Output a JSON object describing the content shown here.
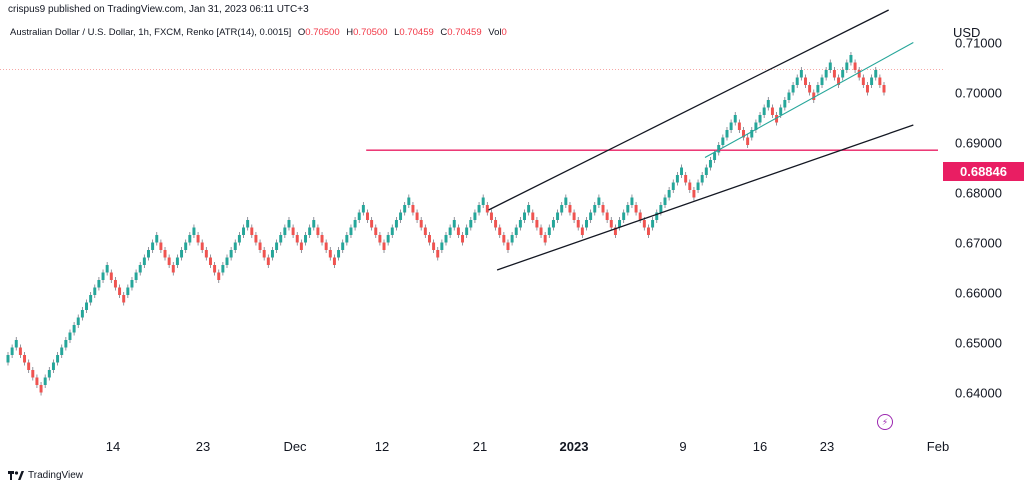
{
  "header": {
    "published": "crispus9 published on TradingView.com, Jan 31, 2023 06:11 UTC+3"
  },
  "legend": {
    "symbol": "Australian Dollar / U.S. Dollar, 1h, FXCM, Renko [ATR(14), 0.0015]",
    "open_label": "O",
    "open": "0.70500",
    "high_label": "H",
    "high": "0.70500",
    "low_label": "L",
    "low": "0.70459",
    "close_label": "C",
    "close": "0.70459",
    "vol_label": "Vol",
    "vol": "0"
  },
  "price_tag": "0.68846",
  "brand": "TradingView",
  "colors": {
    "up": "#26a69a",
    "down": "#ef5350",
    "resistance": "#e91e63",
    "channel": "#131722",
    "inner_trend": "#26a69a"
  },
  "chart_data": {
    "type": "renko",
    "currency": "USD",
    "brick_size": 0.0015,
    "ylim": [
      0.6325,
      0.7185
    ],
    "y_ticks": [
      "0.71000",
      "0.70000",
      "0.69000",
      "0.68000",
      "0.67000",
      "0.66000",
      "0.65000",
      "0.64000"
    ],
    "x_ticks": [
      {
        "label": "14",
        "bold": false
      },
      {
        "label": "23",
        "bold": false
      },
      {
        "label": "Dec",
        "bold": false
      },
      {
        "label": "12",
        "bold": false
      },
      {
        "label": "21",
        "bold": false
      },
      {
        "label": "2023",
        "bold": true
      },
      {
        "label": "9",
        "bold": false
      },
      {
        "label": "16",
        "bold": false
      },
      {
        "label": "23",
        "bold": false
      },
      {
        "label": "Feb",
        "bold": false
      }
    ],
    "bricks": [
      {
        "start": 0.646,
        "moves": [
          3
        ]
      },
      {
        "moves": [
          -6
        ]
      },
      {
        "moves": [
          16
        ]
      },
      {
        "moves": [
          -4
        ]
      },
      {
        "moves": [
          8
        ]
      },
      {
        "moves": [
          -4
        ]
      },
      {
        "moves": [
          5
        ]
      },
      {
        "moves": [
          -6
        ]
      },
      {
        "moves": [
          7
        ]
      },
      {
        "moves": [
          -5
        ]
      },
      {
        "moves": [
          5
        ]
      },
      {
        "moves": [
          -3
        ]
      },
      {
        "moves": [
          3
        ]
      },
      {
        "moves": [
          -5
        ]
      },
      {
        "moves": [
          7
        ]
      },
      {
        "moves": [
          -5
        ]
      },
      {
        "moves": [
          6
        ]
      },
      {
        "moves": [
          -2
        ]
      },
      {
        "moves": [
          -5
        ]
      },
      {
        "moves": [
          4
        ]
      },
      {
        "moves": [
          -2
        ]
      },
      {
        "moves": [
          5
        ]
      },
      {
        "moves": [
          -6
        ]
      },
      {
        "moves": [
          5
        ]
      },
      {
        "moves": [
          -4
        ]
      },
      {
        "moves": [
          5
        ]
      },
      {
        "moves": [
          -4
        ]
      },
      {
        "moves": [
          4
        ]
      },
      {
        "moves": [
          -4
        ]
      },
      {
        "moves": [
          4
        ]
      },
      {
        "moves": [
          -4
        ]
      },
      {
        "moves": [
          8
        ]
      },
      {
        "moves": [
          -3
        ]
      },
      {
        "moves": [
          10
        ]
      },
      {
        "moves": [
          -3
        ]
      },
      {
        "moves": [
          5
        ]
      },
      {
        "moves": [
          -2
        ]
      },
      {
        "moves": [
          6
        ]
      },
      {
        "moves": [
          -3
        ]
      },
      {
        "moves": [
          4
        ]
      },
      {
        "moves": [
          -2
        ]
      },
      {
        "moves": [
          3
        ]
      },
      {
        "moves": [
          -4
        ]
      },
      {
        "moves": [
          2
        ]
      },
      {
        "moves": [
          -2
        ]
      }
    ],
    "lines": [
      {
        "name": "resistance",
        "x": [
          "2022-12-10",
          "2023-02-01"
        ],
        "y": [
          0.68846,
          0.68846
        ]
      },
      {
        "name": "channel-upper",
        "x": [
          "2022-12-22",
          "2023-01-28"
        ],
        "y": [
          0.6765,
          0.7165
        ]
      },
      {
        "name": "channel-lower",
        "x": [
          "2022-12-23",
          "2023-01-30"
        ],
        "y": [
          0.6645,
          0.6935
        ]
      },
      {
        "name": "inner-trend",
        "x": [
          "2023-01-11",
          "2023-01-30"
        ],
        "y": [
          0.687,
          0.71
        ]
      }
    ],
    "last_price_line": 0.7046
  }
}
